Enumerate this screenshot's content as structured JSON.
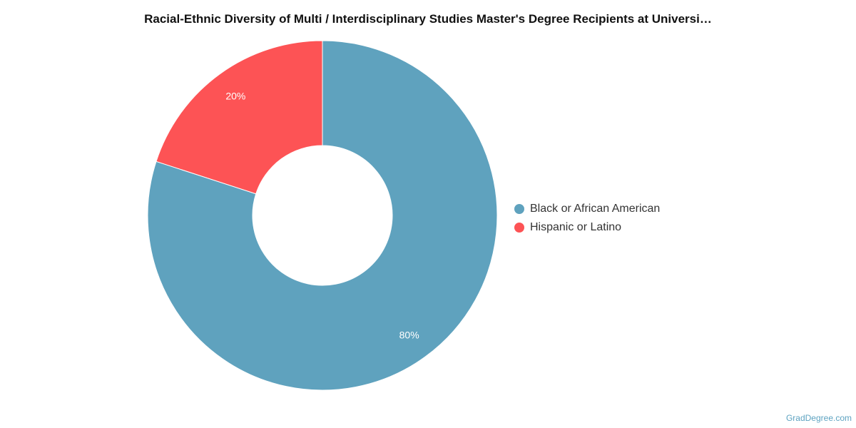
{
  "chart_data": {
    "type": "pie",
    "title": "Racial-Ethnic Diversity of Multi / Interdisciplinary Studies Master's Degree Recipients at Universi…",
    "donut": true,
    "legend_position": "right",
    "slices": [
      {
        "name": "Black or African American",
        "value": 80,
        "label": "80%",
        "color": "#5fa2be"
      },
      {
        "name": "Hispanic or Latino",
        "value": 20,
        "label": "20%",
        "color": "#fd5355"
      }
    ]
  },
  "source": {
    "text": "GradDegree.com"
  }
}
